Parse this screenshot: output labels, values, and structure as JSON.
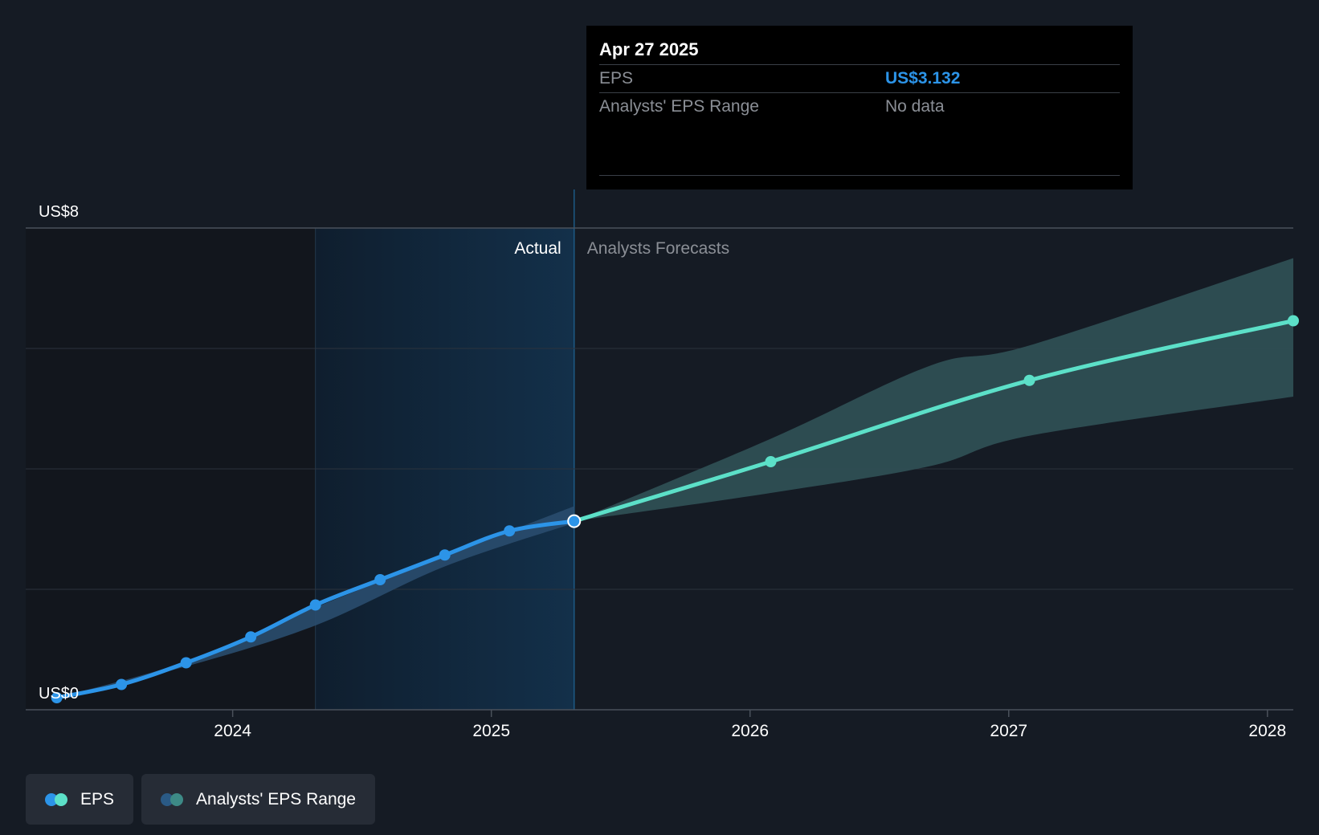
{
  "chart_data": {
    "type": "line",
    "y_ticks": [
      {
        "label": "US$8",
        "value": 8
      },
      {
        "label": "US$0",
        "value": 0
      }
    ],
    "ylim": [
      0,
      8
    ],
    "x_ticks": [
      {
        "label": "2024",
        "value": 2024.0
      },
      {
        "label": "2025",
        "value": 2025.0
      },
      {
        "label": "2026",
        "value": 2026.0
      },
      {
        "label": "2027",
        "value": 2027.0
      },
      {
        "label": "2028",
        "value": 2028.0
      }
    ],
    "xlim": [
      2023.2,
      2028.1
    ],
    "grid": true,
    "regions": {
      "past_start": 2024.32,
      "actual_end": 2025.32,
      "actual_label": "Actual",
      "forecast_label": "Analysts Forecasts"
    },
    "series": [
      {
        "name": "EPS",
        "color": "#2c94e8",
        "forecast_color": "#5ce0c8",
        "points": [
          {
            "x": 2023.32,
            "y": 0.2
          },
          {
            "x": 2023.57,
            "y": 0.42
          },
          {
            "x": 2023.82,
            "y": 0.78
          },
          {
            "x": 2024.07,
            "y": 1.21
          },
          {
            "x": 2024.32,
            "y": 1.74
          },
          {
            "x": 2024.57,
            "y": 2.16
          },
          {
            "x": 2024.82,
            "y": 2.57
          },
          {
            "x": 2025.07,
            "y": 2.97
          },
          {
            "x": 2025.32,
            "y": 3.132
          }
        ],
        "forecast_points": [
          {
            "x": 2025.32,
            "y": 3.132
          },
          {
            "x": 2026.08,
            "y": 4.12
          },
          {
            "x": 2027.08,
            "y": 5.47
          },
          {
            "x": 2028.1,
            "y": 6.46
          }
        ]
      },
      {
        "name": "Analysts' EPS Range",
        "color": "#2a4c6e",
        "forecast_color": "#2e4f54",
        "actual_range": [
          {
            "x": 2023.32,
            "low": 0.2,
            "high": 0.2
          },
          {
            "x": 2023.82,
            "low": 0.72,
            "high": 0.8
          },
          {
            "x": 2024.32,
            "low": 1.4,
            "high": 1.7
          },
          {
            "x": 2024.82,
            "low": 2.38,
            "high": 2.55
          },
          {
            "x": 2025.32,
            "low": 3.1,
            "high": 3.38
          }
        ],
        "forecast_range": [
          {
            "x": 2025.32,
            "low": 3.132,
            "high": 3.132
          },
          {
            "x": 2026.08,
            "low": 3.6,
            "high": 4.5
          },
          {
            "x": 2026.7,
            "low": 4.05,
            "high": 5.72
          },
          {
            "x": 2027.08,
            "low": 4.55,
            "high": 6.05
          },
          {
            "x": 2028.1,
            "low": 5.2,
            "high": 7.5
          }
        ]
      }
    ]
  },
  "tooltip": {
    "date": "Apr 27 2025",
    "rows": [
      {
        "label": "EPS",
        "value": "US$3.132"
      },
      {
        "label": "Analysts' EPS Range",
        "value": "No data"
      }
    ]
  },
  "legend": [
    {
      "label": "EPS",
      "colors": [
        "#2c94e8",
        "#5ce0c8"
      ]
    },
    {
      "label": "Analysts' EPS Range",
      "colors": [
        "#2a5a85",
        "#3d8a86"
      ]
    }
  ]
}
